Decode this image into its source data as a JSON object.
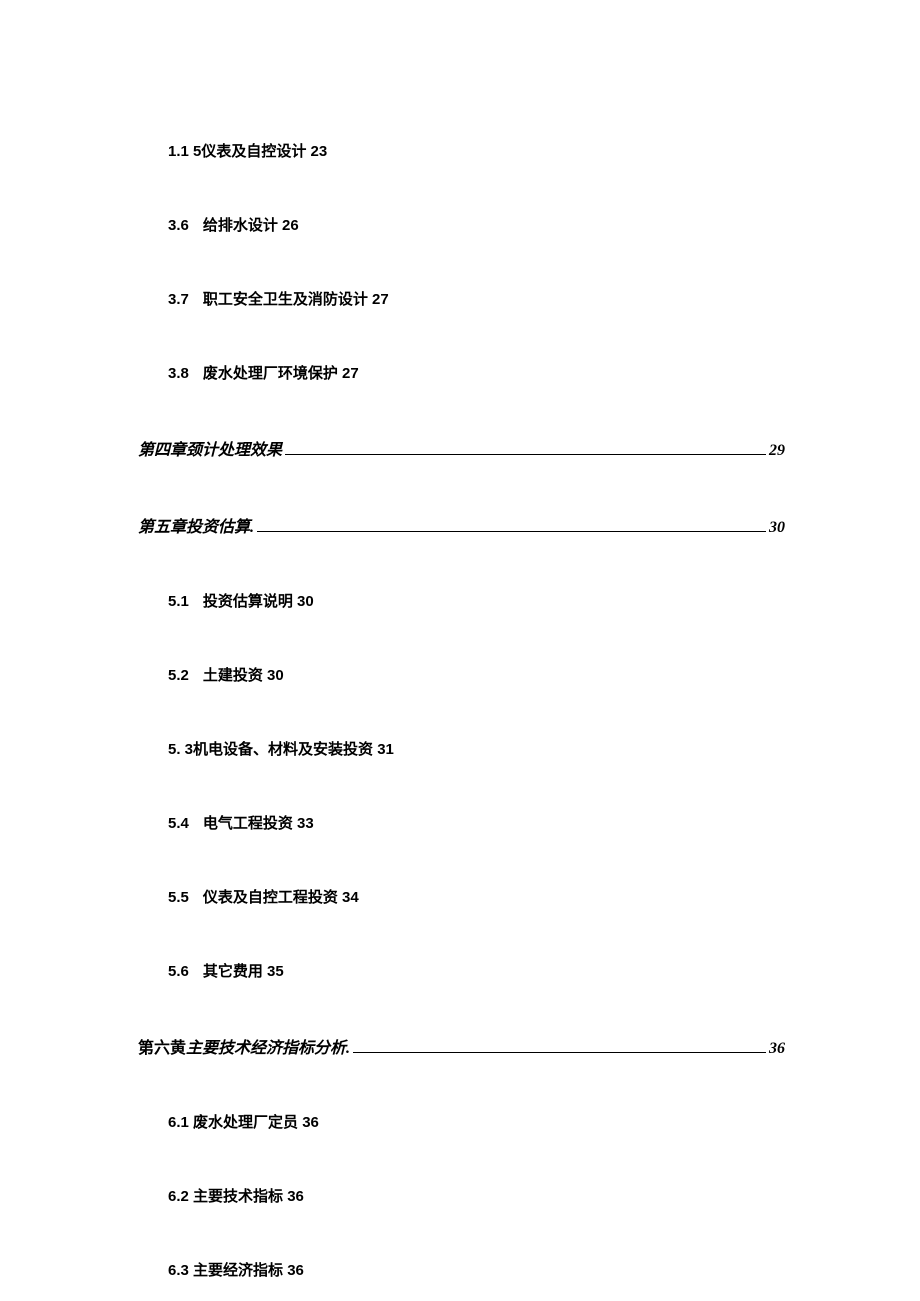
{
  "toc": {
    "typography": {
      "sub_fontsize": 15,
      "chapter_fontsize": 16,
      "text_color": "#000000",
      "background_color": "#ffffff",
      "line_spacing": 53
    },
    "entries": [
      {
        "type": "sub",
        "num": "1.1  5",
        "text": "仪表及自控设计 23",
        "no_gap": true
      },
      {
        "type": "sub",
        "num": "3.6",
        "text": "给排水设计 26"
      },
      {
        "type": "sub",
        "num": "3.7",
        "text": "职工安全卫生及消防设计 27"
      },
      {
        "type": "sub",
        "num": "3.8",
        "text": "废水处理厂环境保护 27"
      },
      {
        "type": "chapter",
        "title": "第四章颈计处理效果",
        "page": "29"
      },
      {
        "type": "chapter",
        "title": "第五章投资估算.",
        "page": "30"
      },
      {
        "type": "sub",
        "num": "5.1",
        "text": "投资估算说明 30"
      },
      {
        "type": "sub",
        "num": "5.2",
        "text": "土建投资 30"
      },
      {
        "type": "sub",
        "num": "5.    3",
        "text": "机电设备、材料及安装投资 31",
        "no_gap": true
      },
      {
        "type": "sub",
        "num": "5.4",
        "text": "电气工程投资 33"
      },
      {
        "type": "sub",
        "num": "5.5",
        "text": "仪表及自控工程投资 34"
      },
      {
        "type": "sub",
        "num": "5.6",
        "text": "其它费用 35"
      },
      {
        "type": "chapter6",
        "prefix": "第六黄",
        "italic": "主要技术经济指标分析.",
        "page": "36"
      },
      {
        "type": "sub",
        "num": "6.1",
        "text": "废水处理厂定员 36",
        "tight": true
      },
      {
        "type": "sub",
        "num": "6.2",
        "text": "主要技术指标 36",
        "tight": true
      },
      {
        "type": "sub",
        "num": "6.3",
        "text": "主要经济指标 36",
        "tight": true
      }
    ]
  }
}
